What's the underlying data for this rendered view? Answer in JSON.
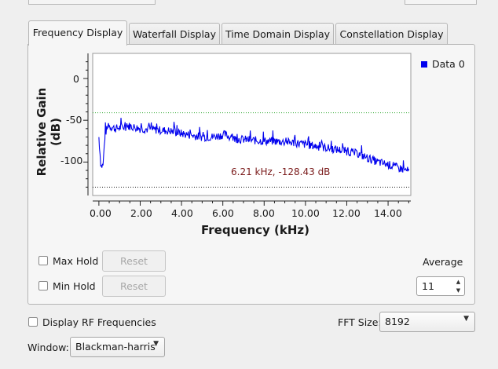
{
  "tabs": [
    {
      "label": "Frequency Display",
      "active": true
    },
    {
      "label": "Waterfall Display",
      "active": false
    },
    {
      "label": "Time Domain Display",
      "active": false
    },
    {
      "label": "Constellation Display",
      "active": false
    }
  ],
  "plot": {
    "ylabel": "Relative Gain (dB)",
    "xlabel": "Frequency (kHz)",
    "yticks": [
      "0",
      "-50",
      "-100"
    ],
    "xticks": [
      "0.00",
      "2.00",
      "4.00",
      "6.00",
      "8.00",
      "10.00",
      "12.00",
      "14.00"
    ],
    "legend": "Data 0",
    "marker_text": "6.21 kHz, -128.43 dB",
    "series_color": "#0000ee",
    "maxhold_line_color": "#2fa82f",
    "minhold_line_color": "#222222"
  },
  "chart_data": {
    "type": "line",
    "xlabel": "Frequency (kHz)",
    "ylabel": "Relative Gain (dB)",
    "xlim": [
      -0.3,
      15.1
    ],
    "ylim": [
      -140,
      30
    ],
    "grid": false,
    "legend_position": "top-right",
    "series": [
      {
        "name": "Data 0",
        "x": [
          0.0,
          0.1,
          0.2,
          0.3,
          0.4,
          0.5,
          0.6,
          0.8,
          1.0,
          1.5,
          2.0,
          2.5,
          3.0,
          3.5,
          4.0,
          4.5,
          5.0,
          5.5,
          5.9,
          6.1,
          6.5,
          7.0,
          7.5,
          8.0,
          8.5,
          9.0,
          9.5,
          10.0,
          10.5,
          11.0,
          11.5,
          12.0,
          12.5,
          13.0,
          13.5,
          14.0,
          14.5,
          15.0
        ],
        "y": [
          -70,
          -105,
          -104,
          -66,
          -60,
          -57,
          -58,
          -60,
          -59,
          -57,
          -60,
          -61,
          -62,
          -63,
          -66,
          -68,
          -70,
          -70,
          -68,
          -67,
          -72,
          -73,
          -74,
          -75,
          -75,
          -76,
          -77,
          -79,
          -81,
          -83,
          -85,
          -87,
          -90,
          -95,
          -100,
          -103,
          -107,
          -111
        ]
      }
    ],
    "hlines": {
      "max_hold": -41,
      "min_hold": -130
    },
    "marker": {
      "x": 6.21,
      "y": -128.43
    }
  },
  "controls": {
    "max_hold_label": "Max Hold",
    "min_hold_label": "Min Hold",
    "reset_label": "Reset",
    "average_label": "Average",
    "average_value": "11",
    "display_rf_label": "Display RF Frequencies",
    "fft_size_label": "FFT Size:",
    "fft_size_value": "8192",
    "window_label": "Window:",
    "window_value": "Blackman-harris"
  }
}
